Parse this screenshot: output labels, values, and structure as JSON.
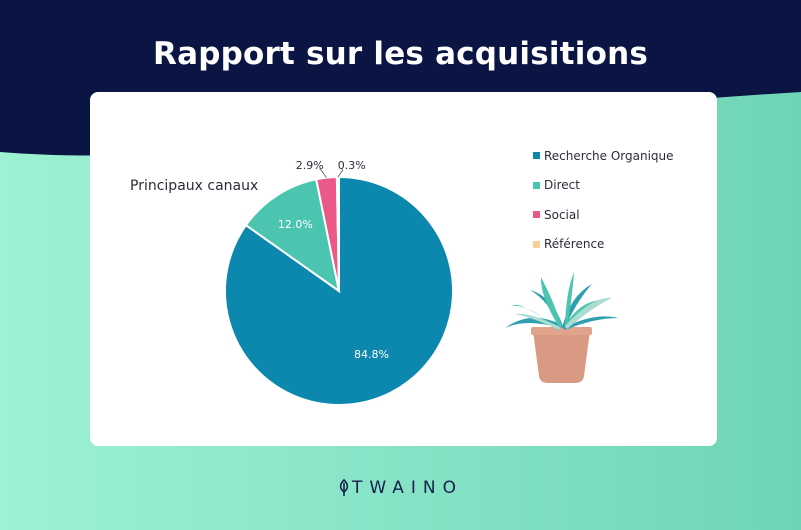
{
  "header": {
    "title": "Rapport sur les acquisitions"
  },
  "chart_data": {
    "type": "pie",
    "subtitle": "Principaux canaux",
    "slices": [
      {
        "label": "Recherche Organique",
        "value": 84.8,
        "display": "84.8%",
        "color": "#0c87ae"
      },
      {
        "label": "Direct",
        "value": 12.0,
        "display": "12.0%",
        "color": "#4bc4b0"
      },
      {
        "label": "Social",
        "value": 2.9,
        "display": "2.9%",
        "color": "#eb5988"
      },
      {
        "label": "Référence",
        "value": 0.3,
        "display": "0.3%",
        "color": "#f5cf9c"
      }
    ],
    "legend": "right"
  },
  "brand": {
    "name": "TWAINO"
  },
  "colors": {
    "header_bg": "#0b1543",
    "card_bg": "#ffffff"
  }
}
